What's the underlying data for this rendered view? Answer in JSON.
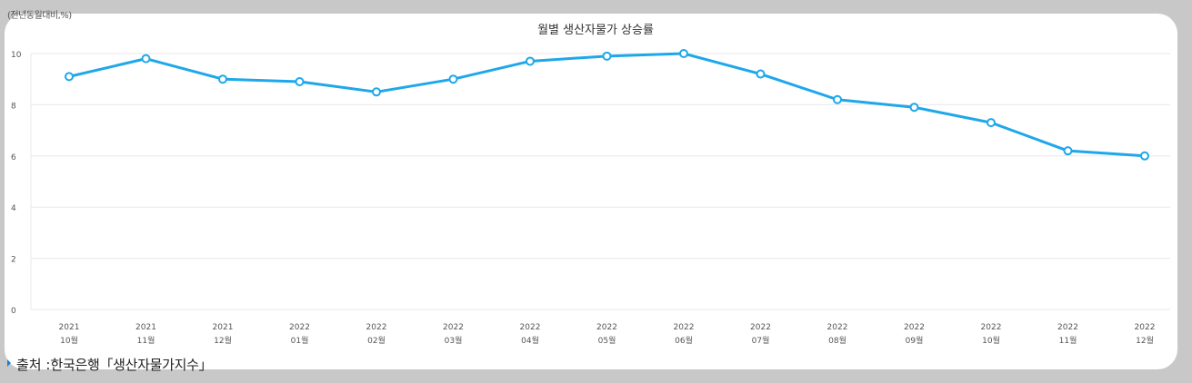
{
  "unit_label": "(전년동월대비,%)",
  "source": {
    "prefix": "출처 : ",
    "text": "한국은행「생산자물가지수」"
  },
  "colors": {
    "line": "#1ea7ea",
    "grid": "#e8e8e8",
    "marker_fill": "#ffffff"
  },
  "chart_data": {
    "type": "line",
    "title": "월별 생산자물가 상승률",
    "xlabel": "",
    "ylabel": "(전년동월대비,%)",
    "ylim": [
      0,
      10
    ],
    "yticks": [
      0,
      2,
      4,
      6,
      8,
      10
    ],
    "grid": true,
    "categories": [
      {
        "year": "2021",
        "month": "10월"
      },
      {
        "year": "2021",
        "month": "11월"
      },
      {
        "year": "2021",
        "month": "12월"
      },
      {
        "year": "2022",
        "month": "01월"
      },
      {
        "year": "2022",
        "month": "02월"
      },
      {
        "year": "2022",
        "month": "03월"
      },
      {
        "year": "2022",
        "month": "04월"
      },
      {
        "year": "2022",
        "month": "05월"
      },
      {
        "year": "2022",
        "month": "06월"
      },
      {
        "year": "2022",
        "month": "07월"
      },
      {
        "year": "2022",
        "month": "08월"
      },
      {
        "year": "2022",
        "month": "09월"
      },
      {
        "year": "2022",
        "month": "10월"
      },
      {
        "year": "2022",
        "month": "11월"
      },
      {
        "year": "2022",
        "month": "12월"
      }
    ],
    "series": [
      {
        "name": "생산자물가 상승률",
        "values": [
          9.1,
          9.8,
          9.0,
          8.9,
          8.5,
          9.0,
          9.7,
          9.9,
          10.0,
          9.2,
          8.2,
          7.9,
          7.3,
          6.2,
          6.0
        ]
      }
    ]
  }
}
